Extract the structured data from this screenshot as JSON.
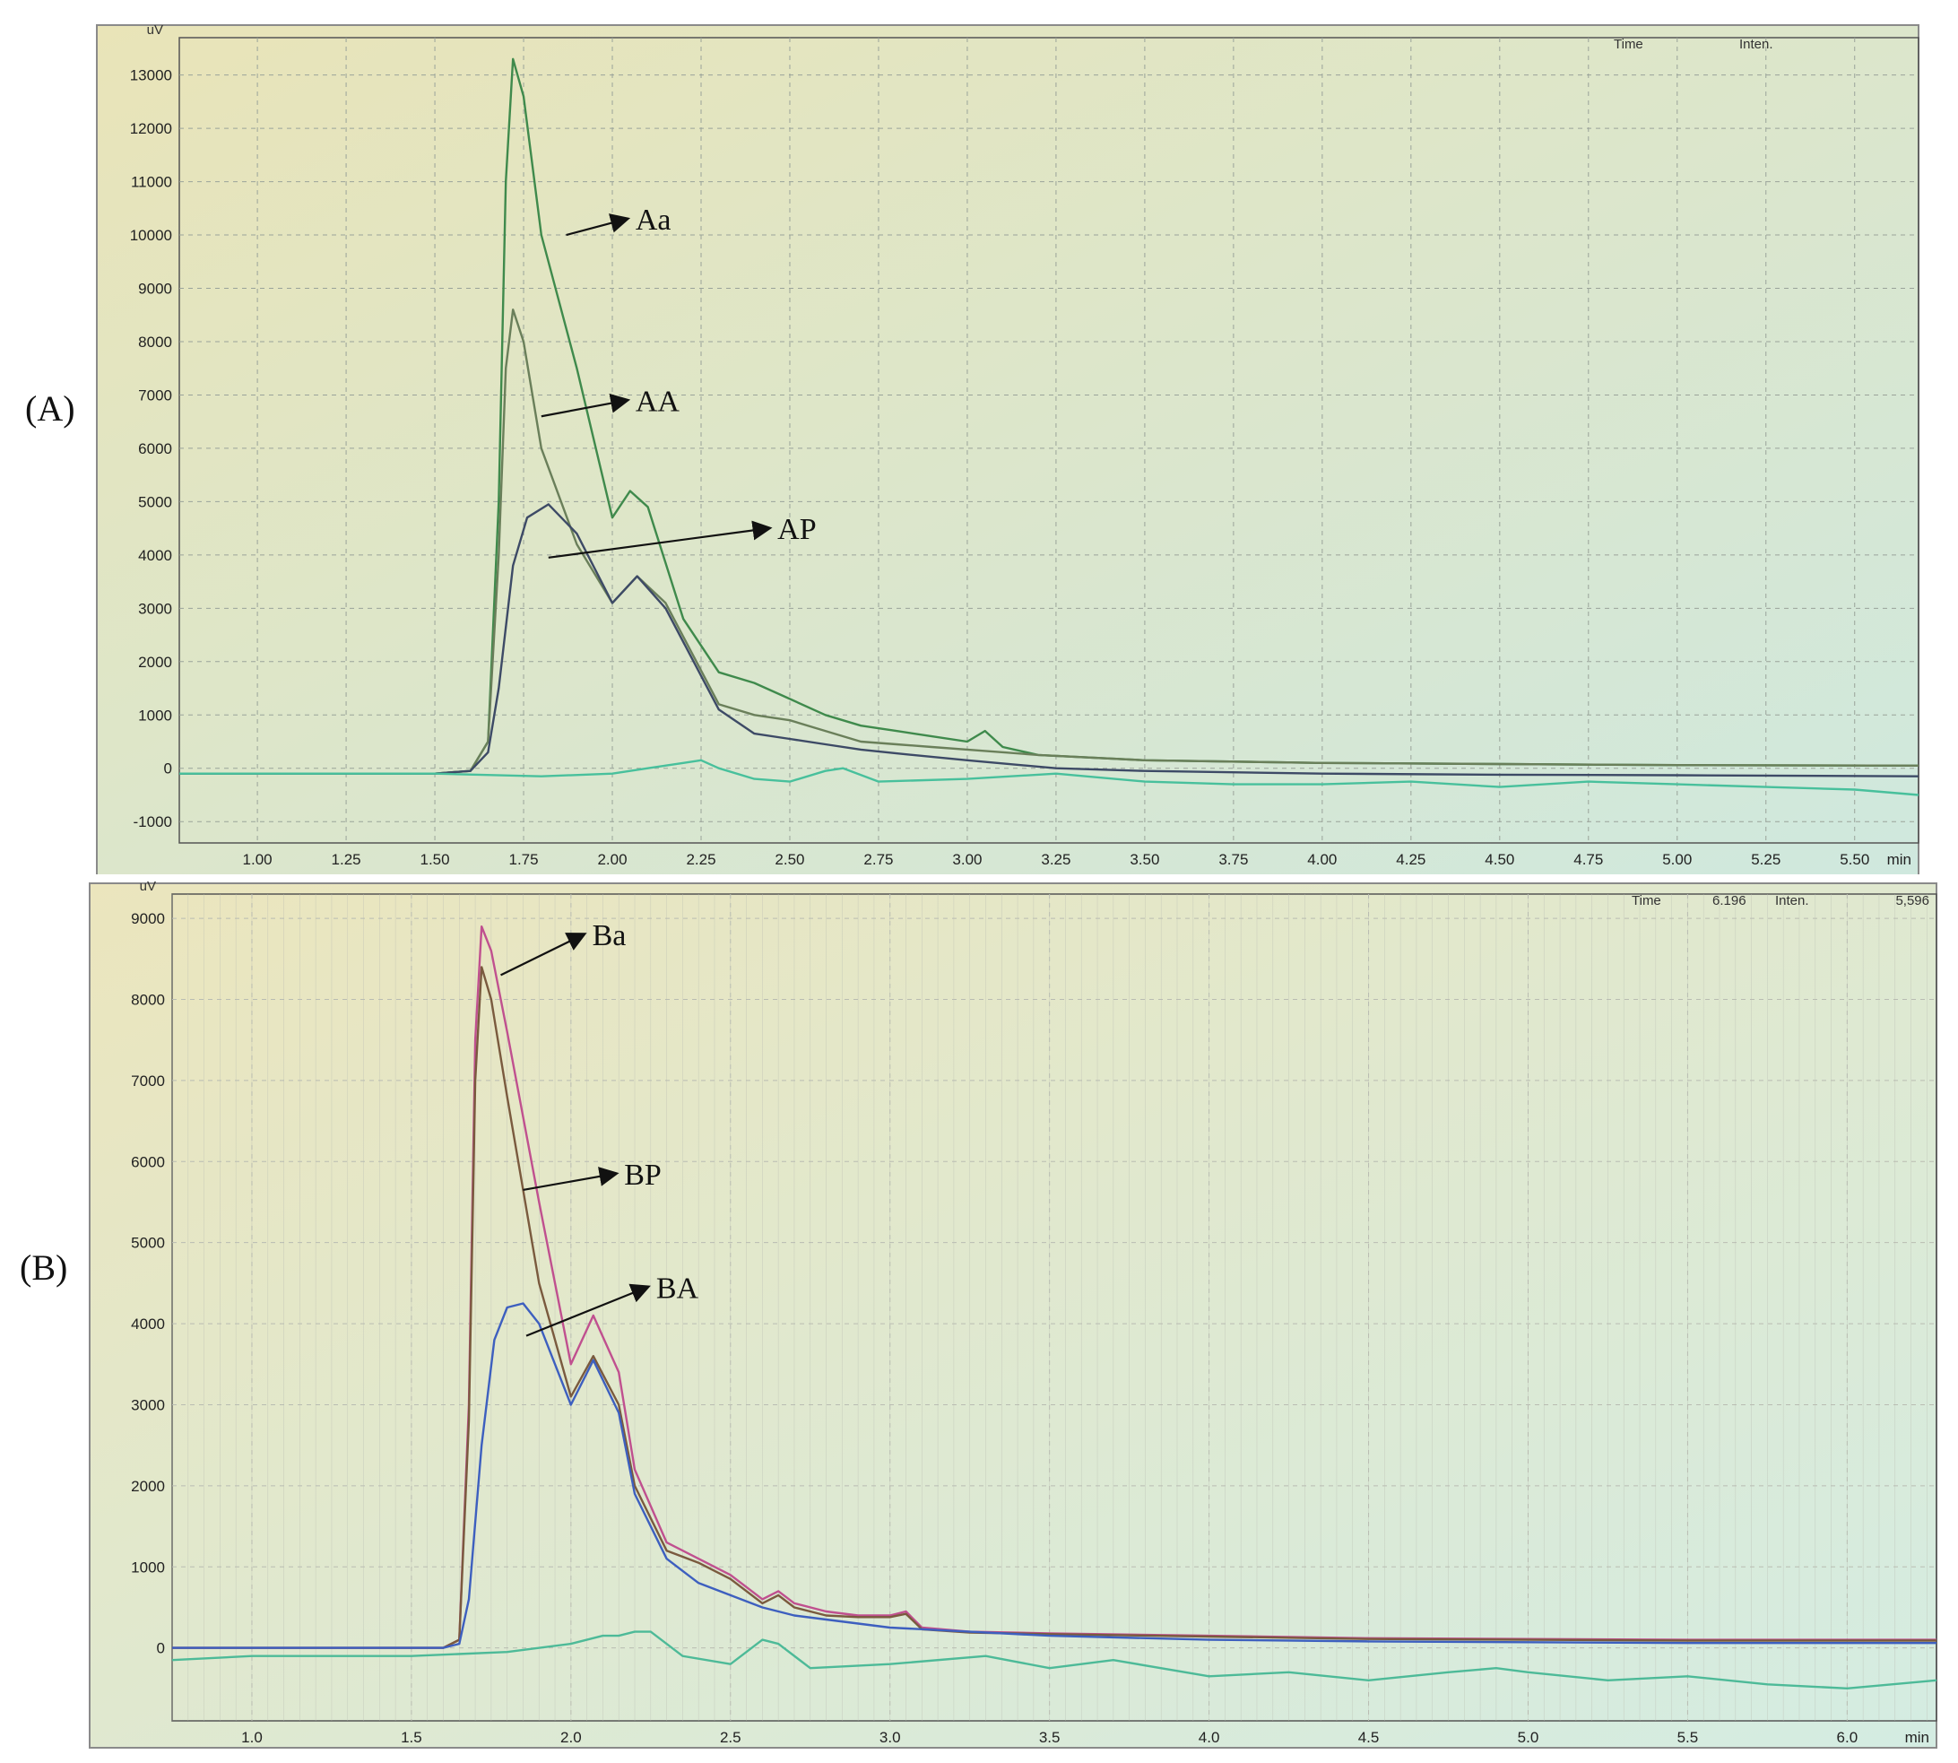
{
  "panels": {
    "a": {
      "label": "(A)"
    },
    "b": {
      "label": "(B)"
    }
  },
  "chart_data": [
    {
      "type": "line",
      "panel": "(A)",
      "title": "",
      "xlabel": "min",
      "ylabel": "uV",
      "xlim": [
        0.78,
        5.68
      ],
      "ylim": [
        -1400,
        13700
      ],
      "xticks": [
        1.0,
        1.25,
        1.5,
        1.75,
        2.0,
        2.25,
        2.5,
        2.75,
        3.0,
        3.25,
        3.5,
        3.75,
        4.0,
        4.25,
        4.5,
        4.75,
        5.0,
        5.25,
        5.5
      ],
      "xtick_labels": [
        "1.00",
        "1.25",
        "1.50",
        "1.75",
        "2.00",
        "2.25",
        "2.50",
        "2.75",
        "3.00",
        "3.25",
        "3.50",
        "3.75",
        "4.00",
        "4.25",
        "4.50",
        "4.75",
        "5.00",
        "5.25",
        "5.50"
      ],
      "yticks": [
        -1000,
        0,
        1000,
        2000,
        3000,
        4000,
        5000,
        6000,
        7000,
        8000,
        9000,
        10000,
        11000,
        12000,
        13000
      ],
      "ytick_labels": [
        "-1000",
        "0",
        "1000",
        "2000",
        "3000",
        "4000",
        "5000",
        "6000",
        "7000",
        "8000",
        "9000",
        "10000",
        "11000",
        "12000",
        "13000"
      ],
      "grid": true,
      "header": {
        "time_label": "Time",
        "time_value": "",
        "inten_label": "Inten.",
        "inten_value": ""
      },
      "colors": {
        "background_top": "#e9e4b8",
        "background_bottom": "#cfe8de",
        "grid": "#9aa39a"
      },
      "series": [
        {
          "name": "Aa",
          "color": "#3f8a4c",
          "x": [
            0.78,
            1.5,
            1.6,
            1.65,
            1.68,
            1.7,
            1.72,
            1.75,
            1.8,
            1.9,
            2.0,
            2.05,
            2.1,
            2.2,
            2.3,
            2.4,
            2.5,
            2.6,
            2.7,
            2.8,
            2.9,
            3.0,
            3.05,
            3.1,
            3.2,
            3.5,
            4.0,
            4.5,
            5.0,
            5.68
          ],
          "y": [
            -100,
            -100,
            -50,
            500,
            5000,
            11000,
            13300,
            12600,
            10000,
            7500,
            4700,
            5200,
            4900,
            2800,
            1800,
            1600,
            1300,
            1000,
            800,
            700,
            600,
            500,
            700,
            400,
            250,
            150,
            100,
            80,
            60,
            50
          ]
        },
        {
          "name": "AA",
          "color": "#6a7f5a",
          "x": [
            0.78,
            1.5,
            1.6,
            1.65,
            1.68,
            1.7,
            1.72,
            1.75,
            1.8,
            1.9,
            2.0,
            2.07,
            2.15,
            2.3,
            2.4,
            2.5,
            2.6,
            2.7,
            2.8,
            2.9,
            3.0,
            3.2,
            3.5,
            4.0,
            4.5,
            5.0,
            5.68
          ],
          "y": [
            -100,
            -100,
            -50,
            500,
            4000,
            7500,
            8600,
            8000,
            6000,
            4200,
            3100,
            3600,
            3100,
            1200,
            1000,
            900,
            700,
            500,
            450,
            400,
            350,
            250,
            150,
            100,
            80,
            60,
            50
          ]
        },
        {
          "name": "AP",
          "color": "#3d4a66",
          "x": [
            0.78,
            1.5,
            1.6,
            1.65,
            1.68,
            1.72,
            1.76,
            1.82,
            1.9,
            2.0,
            2.07,
            2.15,
            2.3,
            2.4,
            2.5,
            2.6,
            2.7,
            2.8,
            3.0,
            3.25,
            3.5,
            4.0,
            4.5,
            5.0,
            5.68
          ],
          "y": [
            -100,
            -100,
            -50,
            300,
            1500,
            3800,
            4700,
            4950,
            4400,
            3100,
            3600,
            3000,
            1100,
            650,
            550,
            450,
            350,
            280,
            150,
            0,
            -50,
            -100,
            -120,
            -130,
            -150
          ]
        },
        {
          "name": "",
          "color": "#48c09c",
          "x": [
            0.78,
            1.5,
            1.8,
            2.0,
            2.1,
            2.2,
            2.25,
            2.3,
            2.4,
            2.5,
            2.6,
            2.65,
            2.75,
            3.0,
            3.25,
            3.5,
            3.75,
            4.0,
            4.25,
            4.5,
            4.75,
            5.0,
            5.25,
            5.5,
            5.68
          ],
          "y": [
            -100,
            -100,
            -150,
            -100,
            0,
            100,
            150,
            0,
            -200,
            -250,
            -50,
            0,
            -250,
            -200,
            -100,
            -250,
            -300,
            -300,
            -250,
            -350,
            -250,
            -300,
            -350,
            -400,
            -500
          ]
        }
      ],
      "annotations": [
        {
          "text": "Aa",
          "x": 2.05,
          "y": 10300
        },
        {
          "text": "AA",
          "x": 2.05,
          "y": 6900
        },
        {
          "text": "AP",
          "x": 2.45,
          "y": 4500
        }
      ]
    },
    {
      "type": "line",
      "panel": "(B)",
      "title": "",
      "xlabel": "min",
      "ylabel": "uV",
      "xlim": [
        0.75,
        6.28
      ],
      "ylim": [
        -900,
        9300
      ],
      "xticks": [
        1.0,
        1.5,
        2.0,
        2.5,
        3.0,
        3.5,
        4.0,
        4.5,
        5.0,
        5.5,
        6.0
      ],
      "xtick_labels": [
        "1.0",
        "1.5",
        "2.0",
        "2.5",
        "3.0",
        "3.5",
        "4.0",
        "4.5",
        "5.0",
        "5.5",
        "6.0"
      ],
      "yticks": [
        0,
        1000,
        2000,
        3000,
        4000,
        5000,
        6000,
        7000,
        8000,
        9000
      ],
      "ytick_labels": [
        "0",
        "1000",
        "2000",
        "3000",
        "4000",
        "5000",
        "6000",
        "7000",
        "8000",
        "9000"
      ],
      "grid": true,
      "header": {
        "time_label": "Time",
        "time_value": "6.196",
        "inten_label": "Inten.",
        "inten_value": "5,596"
      },
      "colors": {
        "background_top": "#ebe5bd",
        "background_bottom": "#d4ece2",
        "grid": "#b9bcb2"
      },
      "series": [
        {
          "name": "Ba",
          "color": "#c0508f",
          "x": [
            0.75,
            1.6,
            1.65,
            1.68,
            1.7,
            1.72,
            1.75,
            1.8,
            1.9,
            2.0,
            2.07,
            2.15,
            2.2,
            2.3,
            2.4,
            2.5,
            2.6,
            2.65,
            2.7,
            2.8,
            2.9,
            3.0,
            3.05,
            3.1,
            3.25,
            3.5,
            4.0,
            4.5,
            5.0,
            5.5,
            6.0,
            6.28
          ],
          "y": [
            0,
            0,
            100,
            3000,
            7500,
            8900,
            8600,
            7600,
            5500,
            3500,
            4100,
            3400,
            2200,
            1300,
            1100,
            900,
            600,
            700,
            550,
            450,
            400,
            400,
            450,
            250,
            200,
            180,
            150,
            120,
            110,
            100,
            100,
            100
          ]
        },
        {
          "name": "BP",
          "color": "#7a5a3e",
          "x": [
            0.75,
            1.6,
            1.65,
            1.68,
            1.7,
            1.72,
            1.75,
            1.8,
            1.9,
            2.0,
            2.07,
            2.15,
            2.2,
            2.3,
            2.4,
            2.5,
            2.6,
            2.65,
            2.7,
            2.8,
            2.9,
            3.0,
            3.05,
            3.1,
            3.25,
            3.5,
            4.0,
            4.5,
            5.0,
            5.5,
            6.0,
            6.28
          ],
          "y": [
            0,
            0,
            100,
            2800,
            7000,
            8400,
            8000,
            6800,
            4500,
            3100,
            3600,
            3000,
            2000,
            1200,
            1050,
            850,
            550,
            650,
            500,
            400,
            380,
            380,
            420,
            230,
            190,
            170,
            140,
            110,
            100,
            90,
            90,
            90
          ]
        },
        {
          "name": "BA",
          "color": "#3d5fbf",
          "x": [
            0.75,
            1.6,
            1.65,
            1.68,
            1.72,
            1.76,
            1.8,
            1.85,
            1.9,
            2.0,
            2.07,
            2.15,
            2.2,
            2.3,
            2.4,
            2.5,
            2.6,
            2.7,
            2.8,
            3.0,
            3.25,
            3.5,
            4.0,
            4.5,
            5.0,
            5.5,
            6.0,
            6.28
          ],
          "y": [
            0,
            0,
            50,
            600,
            2500,
            3800,
            4200,
            4250,
            4000,
            3000,
            3550,
            2900,
            1900,
            1100,
            800,
            650,
            500,
            400,
            350,
            250,
            200,
            150,
            100,
            80,
            70,
            60,
            60,
            60
          ]
        },
        {
          "name": "",
          "color": "#4dba98",
          "x": [
            0.75,
            1.0,
            1.5,
            1.8,
            2.0,
            2.1,
            2.15,
            2.2,
            2.25,
            2.35,
            2.5,
            2.6,
            2.65,
            2.75,
            3.0,
            3.3,
            3.5,
            3.7,
            4.0,
            4.25,
            4.5,
            4.75,
            4.9,
            5.0,
            5.25,
            5.5,
            5.75,
            6.0,
            6.28
          ],
          "y": [
            -150,
            -100,
            -100,
            -50,
            50,
            150,
            150,
            200,
            200,
            -100,
            -200,
            100,
            50,
            -250,
            -200,
            -100,
            -250,
            -150,
            -350,
            -300,
            -400,
            -300,
            -250,
            -300,
            -400,
            -350,
            -450,
            -500,
            -400
          ]
        }
      ],
      "annotations": [
        {
          "text": "Ba",
          "x": 2.05,
          "y": 8800
        },
        {
          "text": "BP",
          "x": 2.15,
          "y": 5850
        },
        {
          "text": "BA",
          "x": 2.25,
          "y": 4450
        }
      ]
    }
  ]
}
